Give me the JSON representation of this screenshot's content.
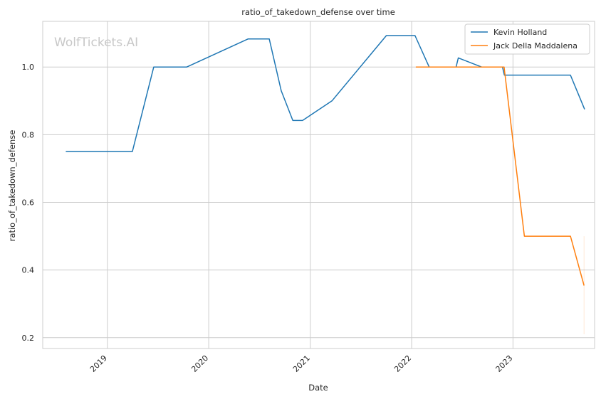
{
  "chart_data": {
    "type": "line",
    "title": "ratio_of_takedown_defense over time",
    "xlabel": "Date",
    "ylabel": "ratio_of_takedown_defense",
    "watermark": "WolfTickets.AI",
    "xlim": [
      "2018-05-13",
      "2023-10-22"
    ],
    "ylim": [
      0.168,
      1.135
    ],
    "x_ticks": [
      "2019-01-01",
      "2020-01-01",
      "2021-01-01",
      "2022-01-01",
      "2023-01-01"
    ],
    "x_tick_labels": [
      "2019",
      "2020",
      "2021",
      "2022",
      "2023"
    ],
    "y_ticks": [
      0.2,
      0.4,
      0.6,
      0.8,
      1.0
    ],
    "y_tick_labels": [
      "0.2",
      "0.4",
      "0.6",
      "0.8",
      "1.0"
    ],
    "grid": true,
    "legend_position": "top-right",
    "series": [
      {
        "name": "Kevin Holland",
        "color": "#1f77b4",
        "points": [
          [
            "2018-08-04",
            0.75
          ],
          [
            "2019-04-01",
            0.75
          ],
          [
            "2019-06-17",
            1.0
          ],
          [
            "2019-10-14",
            1.0
          ],
          [
            "2020-05-22",
            1.083
          ],
          [
            "2020-08-06",
            1.083
          ],
          [
            "2020-09-18",
            0.93
          ],
          [
            "2020-10-30",
            0.842
          ],
          [
            "2020-12-04",
            0.842
          ],
          [
            "2021-03-20",
            0.9
          ],
          [
            "2021-10-02",
            1.093
          ],
          [
            "2022-01-13",
            1.093
          ],
          [
            "2022-03-05",
            1.0
          ],
          [
            "2022-06-10",
            1.0
          ],
          [
            "2022-06-18",
            1.027
          ],
          [
            "2022-09-10",
            1.0
          ],
          [
            "2022-11-24",
            1.0
          ],
          [
            "2022-12-01",
            0.976
          ],
          [
            "2023-07-27",
            0.976
          ],
          [
            "2023-09-16",
            0.875
          ]
        ]
      },
      {
        "name": "Jack Della Maddalena",
        "color": "#ff7f0e",
        "points": [
          [
            "2022-01-16",
            1.0
          ],
          [
            "2022-11-30",
            1.0
          ],
          [
            "2023-02-11",
            0.5
          ],
          [
            "2023-07-27",
            0.5
          ],
          [
            "2023-09-14",
            0.354
          ]
        ],
        "error_range": {
          "x": "2023-09-14",
          "low": 0.21,
          "high": 0.5
        }
      }
    ]
  }
}
